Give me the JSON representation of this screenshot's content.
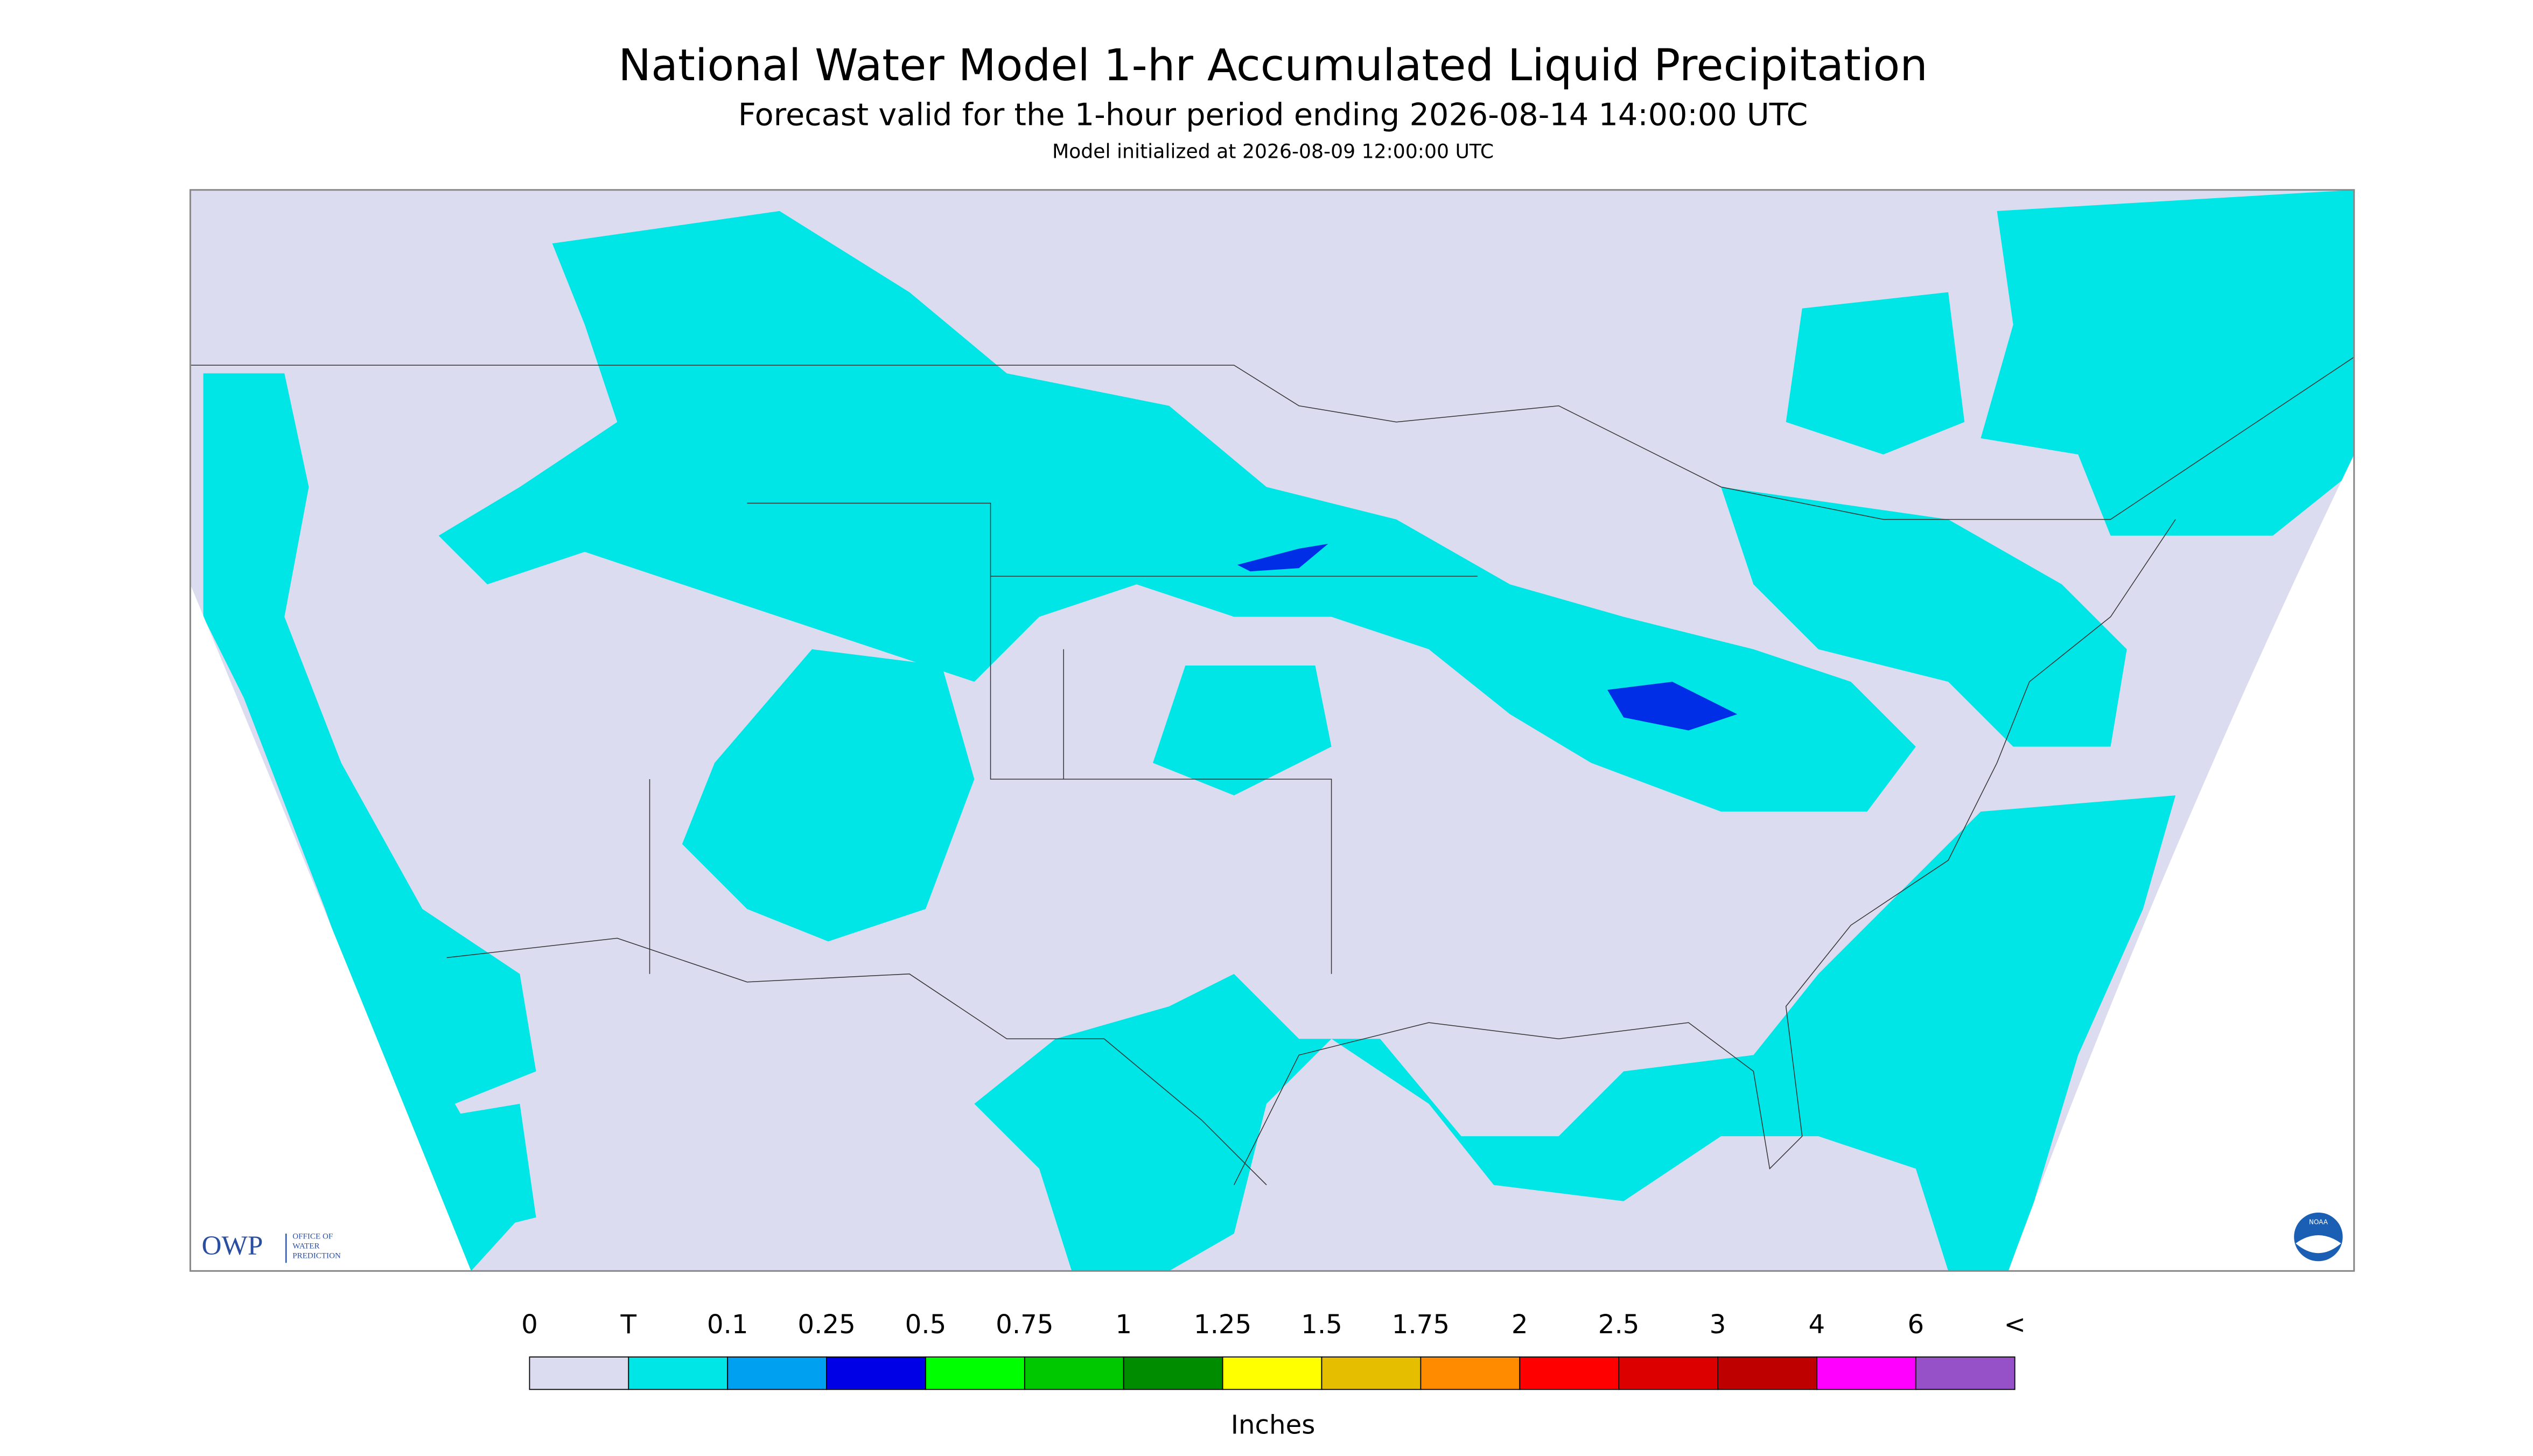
{
  "header": {
    "title": "National Water Model 1-hr Accumulated Liquid Precipitation",
    "subtitle": "Forecast valid for the 1-hour period ending 2026-08-14 14:00:00 UTC",
    "init": "Model initialized at 2026-08-09 12:00:00 UTC"
  },
  "logos": {
    "owp": "OWP",
    "owp_lines": [
      "OFFICE OF",
      "WATER",
      "PREDICTION"
    ],
    "noaa": "NOAA"
  },
  "legend": {
    "labels": [
      "0",
      "T",
      "0.1",
      "0.25",
      "0.5",
      "0.75",
      "1",
      "1.25",
      "1.5",
      "1.75",
      "2",
      "2.5",
      "3",
      "4",
      "6",
      "<"
    ],
    "colors": [
      "#dcdcf0",
      "#00e6e6",
      "#00a0f0",
      "#0000e6",
      "#00ff00",
      "#00c800",
      "#008c00",
      "#ffff00",
      "#e6be00",
      "#ff8c00",
      "#ff0000",
      "#dc0000",
      "#be0000",
      "#ff00ff",
      "#9650c8"
    ],
    "unit": "Inches"
  }
}
